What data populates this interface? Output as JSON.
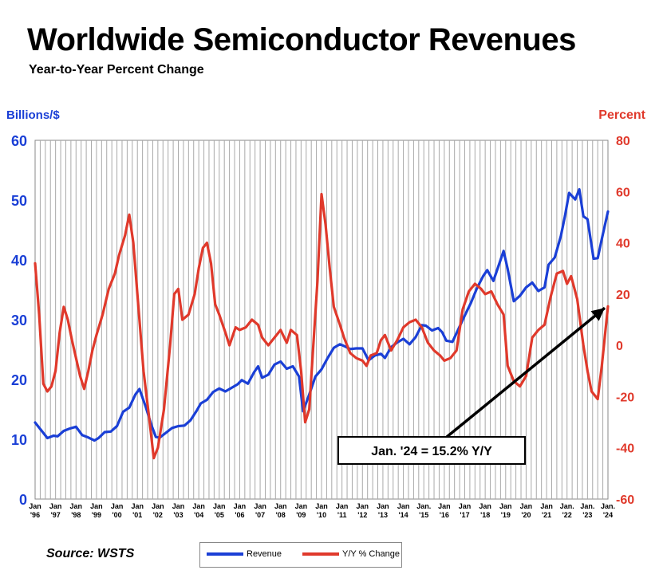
{
  "title": "Worldwide Semiconductor Revenues",
  "subtitle": "Year-to-Year Percent Change",
  "source": "Source: WSTS",
  "chart_data": {
    "type": "line",
    "x_labels": [
      {
        "line1": "Jan",
        "line2": "'96"
      },
      {
        "line1": "Jan",
        "line2": "'97"
      },
      {
        "line1": "Jan",
        "line2": "'98"
      },
      {
        "line1": "Jan",
        "line2": "'99"
      },
      {
        "line1": "Jan",
        "line2": "'00"
      },
      {
        "line1": "Jan",
        "line2": "'01"
      },
      {
        "line1": "Jan",
        "line2": "'02"
      },
      {
        "line1": "Jan",
        "line2": "'03"
      },
      {
        "line1": "Jan",
        "line2": "'04"
      },
      {
        "line1": "Jan",
        "line2": "'05"
      },
      {
        "line1": "Jan",
        "line2": "'06"
      },
      {
        "line1": "Jan",
        "line2": "'07"
      },
      {
        "line1": "Jan",
        "line2": "'08"
      },
      {
        "line1": "Jan",
        "line2": "'09"
      },
      {
        "line1": "Jan",
        "line2": "'10"
      },
      {
        "line1": "Jan",
        "line2": "'11"
      },
      {
        "line1": "Jan",
        "line2": "'12"
      },
      {
        "line1": "Jan",
        "line2": "'13"
      },
      {
        "line1": "Jan",
        "line2": "'14"
      },
      {
        "line1": "Jan.",
        "line2": "'15"
      },
      {
        "line1": "Jan",
        "line2": "'16"
      },
      {
        "line1": "Jan",
        "line2": "'17"
      },
      {
        "line1": "Jan",
        "line2": "'18"
      },
      {
        "line1": "Jan",
        "line2": "'19"
      },
      {
        "line1": "Jan",
        "line2": "'20"
      },
      {
        "line1": "Jan",
        "line2": "'21"
      },
      {
        "line1": "Jan.",
        "line2": "'22"
      },
      {
        "line1": "Jan.",
        "line2": "'23"
      },
      {
        "line1": "Jan.",
        "line2": "'24"
      }
    ],
    "x_range": [
      1996,
      2024
    ],
    "left_axis": {
      "label": "Billions/$",
      "min": 0,
      "max": 60,
      "ticks": [
        0,
        10,
        20,
        30,
        40,
        50,
        60
      ],
      "color": "#1a3fd6"
    },
    "right_axis": {
      "label": "Percent",
      "min": -60,
      "max": 80,
      "ticks": [
        -60,
        -40,
        -20,
        0,
        20,
        40,
        60,
        80
      ],
      "color": "#e0392b"
    },
    "grid": "vertical",
    "annotation": {
      "text": "Jan. '24 = 15.2% Y/Y",
      "x": 2024.0,
      "y": 15.2
    },
    "legend_position": "bottom",
    "series": [
      {
        "name": "Revenue",
        "axis": "left",
        "color": "#1a3fd6",
        "points": [
          [
            1996.0,
            12.8
          ],
          [
            1996.3,
            11.5
          ],
          [
            1996.6,
            10.2
          ],
          [
            1996.9,
            10.6
          ],
          [
            1997.1,
            10.5
          ],
          [
            1997.4,
            11.4
          ],
          [
            1997.7,
            11.8
          ],
          [
            1998.0,
            12.1
          ],
          [
            1998.3,
            10.7
          ],
          [
            1998.6,
            10.3
          ],
          [
            1998.9,
            9.8
          ],
          [
            1999.1,
            10.2
          ],
          [
            1999.4,
            11.2
          ],
          [
            1999.7,
            11.3
          ],
          [
            2000.0,
            12.2
          ],
          [
            2000.3,
            14.6
          ],
          [
            2000.6,
            15.3
          ],
          [
            2000.9,
            17.5
          ],
          [
            2001.1,
            18.4
          ],
          [
            2001.4,
            15.5
          ],
          [
            2001.7,
            12.2
          ],
          [
            2001.9,
            10.4
          ],
          [
            2002.1,
            10.3
          ],
          [
            2002.4,
            11.1
          ],
          [
            2002.7,
            11.9
          ],
          [
            2003.0,
            12.2
          ],
          [
            2003.3,
            12.3
          ],
          [
            2003.6,
            13.2
          ],
          [
            2003.9,
            14.8
          ],
          [
            2004.1,
            16.0
          ],
          [
            2004.4,
            16.6
          ],
          [
            2004.7,
            17.9
          ],
          [
            2005.0,
            18.5
          ],
          [
            2005.3,
            18.0
          ],
          [
            2005.6,
            18.6
          ],
          [
            2005.9,
            19.2
          ],
          [
            2006.1,
            19.9
          ],
          [
            2006.4,
            19.3
          ],
          [
            2006.7,
            21.2
          ],
          [
            2006.9,
            22.2
          ],
          [
            2007.1,
            20.3
          ],
          [
            2007.4,
            20.8
          ],
          [
            2007.7,
            22.5
          ],
          [
            2008.0,
            23.0
          ],
          [
            2008.3,
            21.8
          ],
          [
            2008.6,
            22.2
          ],
          [
            2008.9,
            20.5
          ],
          [
            2009.1,
            14.7
          ],
          [
            2009.4,
            17.5
          ],
          [
            2009.7,
            20.5
          ],
          [
            2010.0,
            21.7
          ],
          [
            2010.3,
            23.6
          ],
          [
            2010.6,
            25.3
          ],
          [
            2010.9,
            25.9
          ],
          [
            2011.1,
            25.6
          ],
          [
            2011.4,
            25.1
          ],
          [
            2011.7,
            25.2
          ],
          [
            2012.0,
            25.2
          ],
          [
            2012.3,
            23.2
          ],
          [
            2012.6,
            24.0
          ],
          [
            2012.9,
            24.3
          ],
          [
            2013.1,
            23.6
          ],
          [
            2013.4,
            25.4
          ],
          [
            2013.7,
            26.2
          ],
          [
            2014.0,
            26.8
          ],
          [
            2014.3,
            25.9
          ],
          [
            2014.6,
            27.1
          ],
          [
            2014.9,
            29.1
          ],
          [
            2015.1,
            29.0
          ],
          [
            2015.4,
            28.2
          ],
          [
            2015.7,
            28.6
          ],
          [
            2015.9,
            27.9
          ],
          [
            2016.1,
            26.5
          ],
          [
            2016.4,
            26.3
          ],
          [
            2016.7,
            28.5
          ],
          [
            2017.0,
            30.7
          ],
          [
            2017.3,
            32.8
          ],
          [
            2017.6,
            35.3
          ],
          [
            2017.9,
            37.3
          ],
          [
            2018.1,
            38.3
          ],
          [
            2018.4,
            36.5
          ],
          [
            2018.7,
            39.5
          ],
          [
            2018.9,
            41.5
          ],
          [
            2019.1,
            38.5
          ],
          [
            2019.4,
            33.1
          ],
          [
            2019.7,
            34.0
          ],
          [
            2020.0,
            35.4
          ],
          [
            2020.3,
            36.2
          ],
          [
            2020.6,
            34.8
          ],
          [
            2020.9,
            35.4
          ],
          [
            2021.1,
            39.2
          ],
          [
            2021.4,
            40.4
          ],
          [
            2021.7,
            44.0
          ],
          [
            2021.9,
            47.4
          ],
          [
            2022.1,
            51.2
          ],
          [
            2022.4,
            50.1
          ],
          [
            2022.6,
            51.8
          ],
          [
            2022.8,
            47.3
          ],
          [
            2023.0,
            46.8
          ],
          [
            2023.3,
            40.2
          ],
          [
            2023.5,
            40.3
          ],
          [
            2023.7,
            43.5
          ],
          [
            2024.0,
            48.1
          ]
        ]
      },
      {
        "name": "Y/Y % Change",
        "axis": "right",
        "color": "#e0392b",
        "points": [
          [
            1996.0,
            32.0
          ],
          [
            1996.2,
            12.0
          ],
          [
            1996.4,
            -15.0
          ],
          [
            1996.6,
            -18.0
          ],
          [
            1996.8,
            -16.0
          ],
          [
            1997.0,
            -10.0
          ],
          [
            1997.2,
            5.0
          ],
          [
            1997.4,
            15.0
          ],
          [
            1997.6,
            10.0
          ],
          [
            1997.8,
            2.0
          ],
          [
            1998.0,
            -5.0
          ],
          [
            1998.2,
            -12.0
          ],
          [
            1998.4,
            -17.0
          ],
          [
            1998.6,
            -10.0
          ],
          [
            1998.8,
            -2.0
          ],
          [
            1999.0,
            4.0
          ],
          [
            1999.3,
            12.0
          ],
          [
            1999.6,
            22.0
          ],
          [
            1999.9,
            28.0
          ],
          [
            2000.1,
            35.0
          ],
          [
            2000.4,
            43.0
          ],
          [
            2000.6,
            51.0
          ],
          [
            2000.8,
            40.0
          ],
          [
            2001.0,
            20.0
          ],
          [
            2001.3,
            -10.0
          ],
          [
            2001.6,
            -30.0
          ],
          [
            2001.8,
            -44.0
          ],
          [
            2002.0,
            -40.0
          ],
          [
            2002.3,
            -25.0
          ],
          [
            2002.6,
            0.0
          ],
          [
            2002.8,
            20.0
          ],
          [
            2003.0,
            22.0
          ],
          [
            2003.2,
            10.0
          ],
          [
            2003.5,
            12.0
          ],
          [
            2003.8,
            20.0
          ],
          [
            2004.0,
            30.0
          ],
          [
            2004.2,
            38.0
          ],
          [
            2004.4,
            40.0
          ],
          [
            2004.6,
            32.0
          ],
          [
            2004.8,
            16.0
          ],
          [
            2005.0,
            12.0
          ],
          [
            2005.3,
            5.0
          ],
          [
            2005.5,
            0.0
          ],
          [
            2005.8,
            7.0
          ],
          [
            2006.0,
            6.0
          ],
          [
            2006.3,
            7.0
          ],
          [
            2006.6,
            10.0
          ],
          [
            2006.9,
            8.0
          ],
          [
            2007.1,
            3.0
          ],
          [
            2007.4,
            0.0
          ],
          [
            2007.7,
            3.0
          ],
          [
            2008.0,
            6.0
          ],
          [
            2008.3,
            1.0
          ],
          [
            2008.5,
            6.0
          ],
          [
            2008.8,
            4.0
          ],
          [
            2009.0,
            -10.0
          ],
          [
            2009.2,
            -30.0
          ],
          [
            2009.4,
            -25.0
          ],
          [
            2009.6,
            0.0
          ],
          [
            2009.8,
            25.0
          ],
          [
            2010.0,
            59.0
          ],
          [
            2010.2,
            47.0
          ],
          [
            2010.4,
            30.0
          ],
          [
            2010.6,
            15.0
          ],
          [
            2010.9,
            8.0
          ],
          [
            2011.1,
            3.0
          ],
          [
            2011.4,
            -3.0
          ],
          [
            2011.7,
            -5.0
          ],
          [
            2012.0,
            -6.0
          ],
          [
            2012.2,
            -8.0
          ],
          [
            2012.4,
            -4.0
          ],
          [
            2012.7,
            -3.0
          ],
          [
            2012.9,
            2.0
          ],
          [
            2013.1,
            4.0
          ],
          [
            2013.4,
            -2.0
          ],
          [
            2013.7,
            2.0
          ],
          [
            2014.0,
            7.0
          ],
          [
            2014.3,
            9.0
          ],
          [
            2014.6,
            10.0
          ],
          [
            2014.9,
            7.0
          ],
          [
            2015.2,
            1.0
          ],
          [
            2015.5,
            -2.0
          ],
          [
            2015.8,
            -4.0
          ],
          [
            2016.0,
            -6.0
          ],
          [
            2016.3,
            -5.0
          ],
          [
            2016.6,
            -2.0
          ],
          [
            2016.9,
            14.0
          ],
          [
            2017.2,
            21.0
          ],
          [
            2017.5,
            24.0
          ],
          [
            2017.8,
            22.0
          ],
          [
            2018.0,
            20.0
          ],
          [
            2018.3,
            21.0
          ],
          [
            2018.6,
            16.0
          ],
          [
            2018.9,
            12.0
          ],
          [
            2019.1,
            -8.0
          ],
          [
            2019.4,
            -14.0
          ],
          [
            2019.7,
            -16.0
          ],
          [
            2020.0,
            -12.0
          ],
          [
            2020.3,
            3.0
          ],
          [
            2020.6,
            6.0
          ],
          [
            2020.9,
            8.0
          ],
          [
            2021.2,
            19.0
          ],
          [
            2021.5,
            28.0
          ],
          [
            2021.8,
            29.0
          ],
          [
            2022.0,
            24.0
          ],
          [
            2022.2,
            27.0
          ],
          [
            2022.5,
            18.0
          ],
          [
            2022.8,
            0.0
          ],
          [
            2023.0,
            -10.0
          ],
          [
            2023.2,
            -18.0
          ],
          [
            2023.5,
            -21.0
          ],
          [
            2023.7,
            -8.0
          ],
          [
            2024.0,
            15.2
          ]
        ]
      }
    ]
  }
}
